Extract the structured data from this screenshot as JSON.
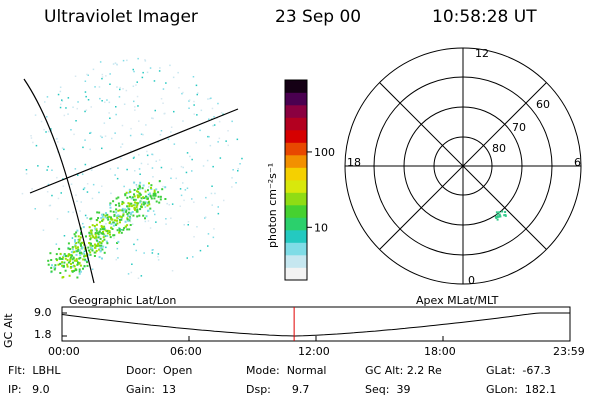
{
  "header": {
    "instrument": "Ultraviolet Imager",
    "date": "23 Sep 00",
    "time": "10:58:28 UT"
  },
  "geo_panel": {
    "label": "Geographic Lat/Lon",
    "aurora_color": "#3ccf3c",
    "aurora_core_color": "#9be000"
  },
  "colorbar": {
    "label": "photon cm⁻²s⁻¹",
    "ticks": [
      "100",
      "10"
    ],
    "tick_values": [
      100,
      10
    ],
    "range": [
      2,
      900
    ],
    "scale": "log",
    "colors": [
      "#f3f3f3",
      "#c6e7f0",
      "#7fdce6",
      "#24c9c0",
      "#2bd06c",
      "#46d130",
      "#90dc14",
      "#d8e80c",
      "#f5d000",
      "#f29000",
      "#e84800",
      "#d60000",
      "#b30020",
      "#8a0040",
      "#4a0050",
      "#150015"
    ]
  },
  "polar_plot": {
    "label": "Apex MLat/MLT",
    "mlt_labels": [
      "12",
      "18",
      "6",
      "0"
    ],
    "lat_labels": [
      "60",
      "70",
      "80"
    ],
    "lat_values": [
      60,
      70,
      80
    ],
    "spot_color": "#33c98a"
  },
  "gc_alt_plot": {
    "ylabel": "GC Alt",
    "yticks": [
      "9.0",
      "1.8"
    ],
    "ytick_values": [
      9.0,
      1.8
    ],
    "xticks": [
      "00:00",
      "06:00",
      "12:00",
      "18:00",
      "23:59"
    ],
    "current_time_marker": "10:58",
    "marker_color": "#e00000"
  },
  "status": {
    "rows": [
      [
        {
          "label": "Flt:",
          "value": "LBHL"
        },
        {
          "label": "Door:",
          "value": "Open"
        },
        {
          "label": "Mode:",
          "value": "Normal"
        },
        {
          "label": "GC Alt:",
          "value": "2.2 Re"
        },
        {
          "label": "GLat:",
          "value": "-67.3"
        }
      ],
      [
        {
          "label": "IP:",
          "value": "9.0"
        },
        {
          "label": "Gain:",
          "value": "13"
        },
        {
          "label": "Dsp:",
          "value": "9.7"
        },
        {
          "label": "Seq:",
          "value": "39"
        },
        {
          "label": "GLon:",
          "value": "182.1"
        }
      ]
    ]
  }
}
